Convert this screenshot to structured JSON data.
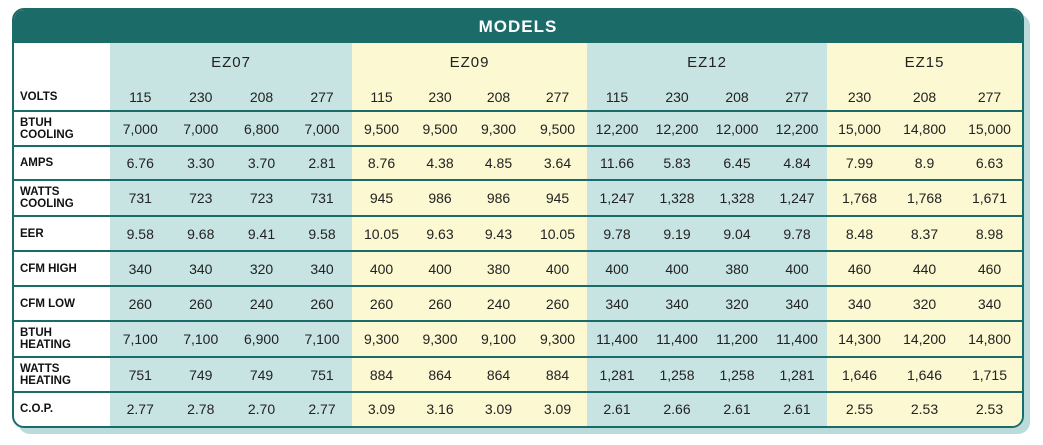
{
  "header": {
    "title": "MODELS"
  },
  "models": [
    {
      "name": "EZ07"
    },
    {
      "name": "EZ09"
    },
    {
      "name": "EZ12"
    },
    {
      "name": "EZ15"
    }
  ],
  "table": {
    "rows": [
      {
        "label": "VOLTS",
        "cells": [
          "115",
          "230",
          "208",
          "277",
          "115",
          "230",
          "208",
          "277",
          "115",
          "230",
          "208",
          "277",
          "230",
          "208",
          "277"
        ]
      },
      {
        "label": "BTUH\nCOOLING",
        "cells": [
          "7,000",
          "7,000",
          "6,800",
          "7,000",
          "9,500",
          "9,500",
          "9,300",
          "9,500",
          "12,200",
          "12,200",
          "12,000",
          "12,200",
          "15,000",
          "14,800",
          "15,000"
        ]
      },
      {
        "label": "AMPS",
        "cells": [
          "6.76",
          "3.30",
          "3.70",
          "2.81",
          "8.76",
          "4.38",
          "4.85",
          "3.64",
          "11.66",
          "5.83",
          "6.45",
          "4.84",
          "7.99",
          "8.9",
          "6.63"
        ]
      },
      {
        "label": "WATTS\nCOOLING",
        "cells": [
          "731",
          "723",
          "723",
          "731",
          "945",
          "986",
          "986",
          "945",
          "1,247",
          "1,328",
          "1,328",
          "1,247",
          "1,768",
          "1,768",
          "1,671"
        ]
      },
      {
        "label": "EER",
        "cells": [
          "9.58",
          "9.68",
          "9.41",
          "9.58",
          "10.05",
          "9.63",
          "9.43",
          "10.05",
          "9.78",
          "9.19",
          "9.04",
          "9.78",
          "8.48",
          "8.37",
          "8.98"
        ]
      },
      {
        "label": "CFM HIGH",
        "cells": [
          "340",
          "340",
          "320",
          "340",
          "400",
          "400",
          "380",
          "400",
          "400",
          "400",
          "380",
          "400",
          "460",
          "440",
          "460"
        ]
      },
      {
        "label": "CFM LOW",
        "cells": [
          "260",
          "260",
          "240",
          "260",
          "260",
          "260",
          "240",
          "260",
          "340",
          "340",
          "320",
          "340",
          "340",
          "320",
          "340"
        ]
      },
      {
        "label": "BTUH\nHEATING",
        "cells": [
          "7,100",
          "7,100",
          "6,900",
          "7,100",
          "9,300",
          "9,300",
          "9,100",
          "9,300",
          "11,400",
          "11,400",
          "11,200",
          "11,400",
          "14,300",
          "14,200",
          "14,800"
        ]
      },
      {
        "label": "WATTS\nHEATING",
        "cells": [
          "751",
          "749",
          "749",
          "751",
          "884",
          "864",
          "864",
          "884",
          "1,281",
          "1,258",
          "1,258",
          "1,281",
          "1,646",
          "1,646",
          "1,715"
        ]
      },
      {
        "label": "C.O.P.",
        "cells": [
          "2.77",
          "2.78",
          "2.70",
          "2.77",
          "3.09",
          "3.16",
          "3.09",
          "3.09",
          "2.61",
          "2.66",
          "2.61",
          "2.61",
          "2.55",
          "2.53",
          "2.53"
        ]
      }
    ]
  }
}
